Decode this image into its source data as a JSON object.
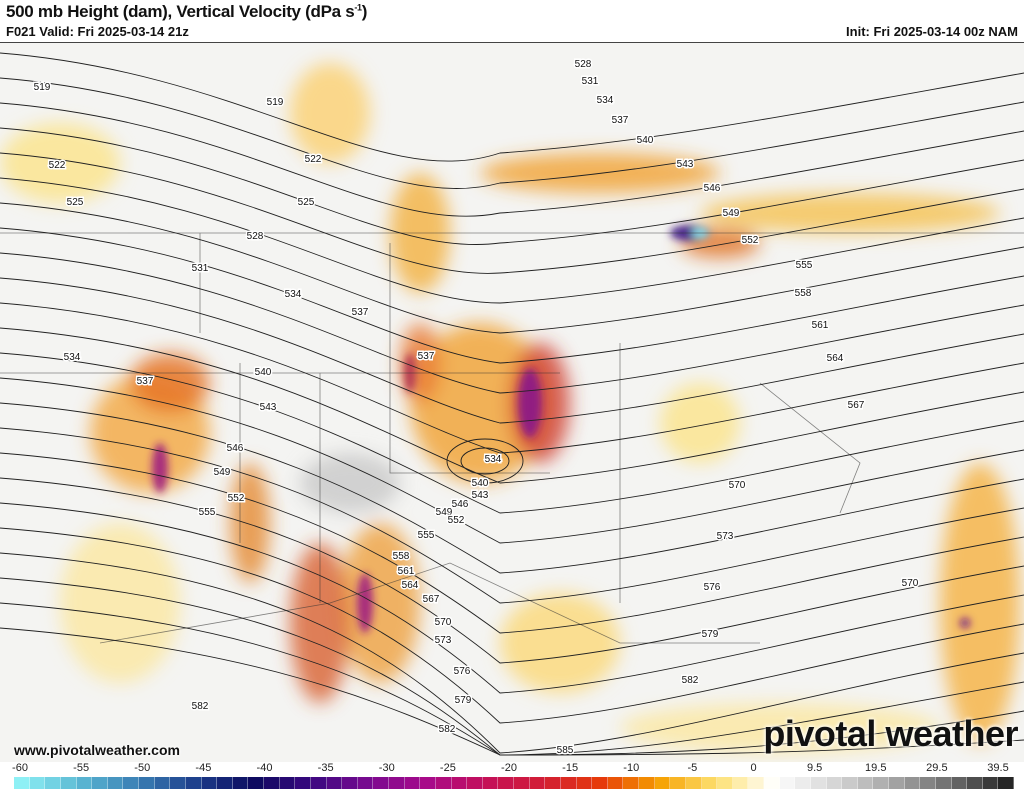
{
  "header": {
    "title": "500 mb Height (dam), Vertical Velocity (dPa s",
    "title_sup": "-1",
    "title_end": ")",
    "valid": "F021 Valid: Fri 2025-03-14 21z",
    "init": "Init: Fri 2025-03-14 00z NAM"
  },
  "watermark": {
    "site": "www.pivotalweather.com",
    "logo": "pivotal weather"
  },
  "map": {
    "contour_color": "#222222",
    "contour_labels": [
      "519",
      "519",
      "522",
      "522",
      "525",
      "525",
      "528",
      "528",
      "531",
      "531",
      "534",
      "534",
      "534",
      "534",
      "537",
      "537",
      "537",
      "537",
      "540",
      "540",
      "540",
      "543",
      "543",
      "543",
      "546",
      "546",
      "546",
      "549",
      "549",
      "549",
      "552",
      "552",
      "552",
      "555",
      "555",
      "555",
      "558",
      "558",
      "561",
      "561",
      "564",
      "564",
      "567",
      "567",
      "570",
      "570",
      "570",
      "573",
      "573",
      "576",
      "576",
      "579",
      "579",
      "582",
      "582",
      "582",
      "585"
    ]
  },
  "colorbar": {
    "ticks": [
      "-60",
      "-55",
      "-50",
      "-45",
      "-40",
      "-35",
      "-30",
      "-25",
      "-20",
      "-15",
      "-10",
      "-5",
      "0",
      "9.5",
      "19.5",
      "29.5",
      "39.5"
    ],
    "color_stops": [
      "#8ef0f5",
      "#5bb8d3",
      "#3a7fb5",
      "#1d3f8c",
      "#0c0a5e",
      "#3a0880",
      "#7a0a90",
      "#a80a8a",
      "#c4105a",
      "#d21d35",
      "#e63a0a",
      "#f5a000",
      "#fde070",
      "#ffffff",
      "#d8d8d8",
      "#a8a8a8",
      "#707070",
      "#262626"
    ]
  }
}
